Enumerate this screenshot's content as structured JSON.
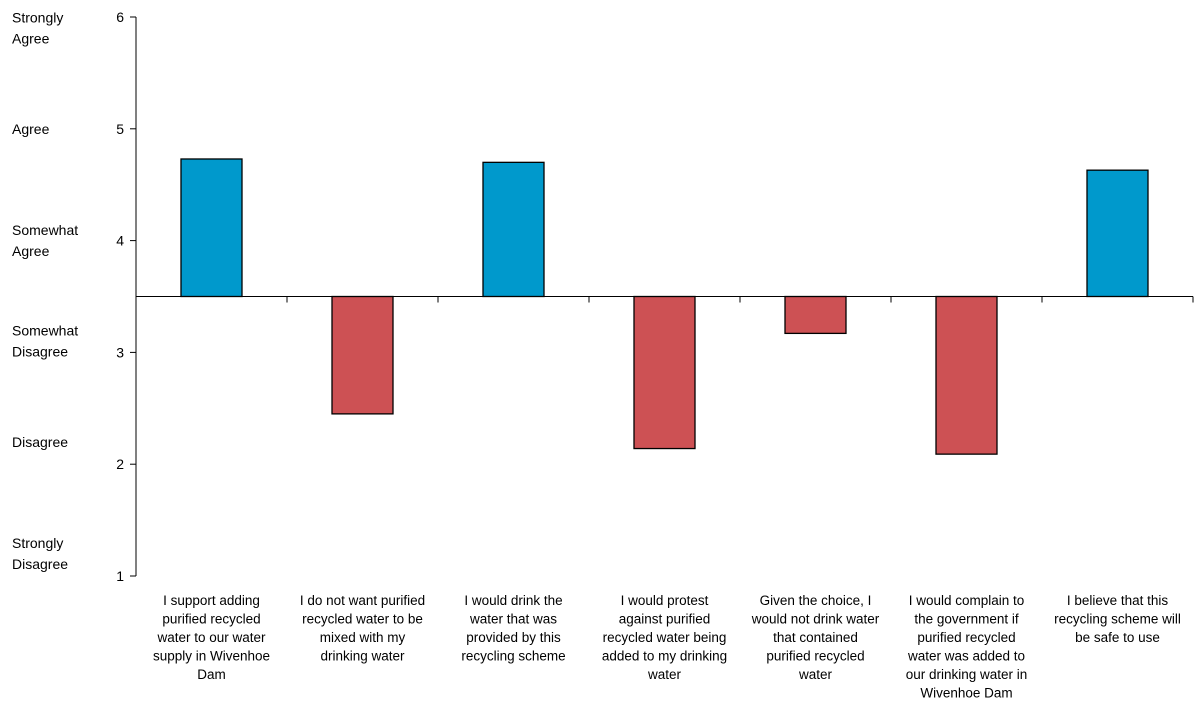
{
  "chart_data": {
    "type": "bar",
    "title": "",
    "xlabel": "",
    "ylabel": "",
    "ylim": [
      1,
      6
    ],
    "yticks": [
      1,
      2,
      3,
      4,
      5,
      6
    ],
    "baseline": 3.5,
    "grid": false,
    "legend": "none",
    "scale_labels": [
      {
        "text": "Strongly\nAgree",
        "value": 5.9
      },
      {
        "text": "Agree",
        "value": 5.0
      },
      {
        "text": "Somewhat\nAgree",
        "value": 4.0
      },
      {
        "text": "Somewhat\nDisagree",
        "value": 3.1
      },
      {
        "text": "Disagree",
        "value": 2.2
      },
      {
        "text": "Strongly\nDisagree",
        "value": 1.2
      }
    ],
    "categories": [
      "I support adding\npurified recycled\nwater to our water\nsupply in Wivenhoe\nDam",
      "I do not want purified\nrecycled water to be\nmixed with my\ndrinking water",
      "I would drink the\nwater that was\nprovided by this\nrecycling scheme",
      "I would protest\nagainst purified\nrecycled water being\nadded to my drinking\nwater",
      "Given the choice, I\nwould not drink water\nthat contained\npurified recycled\nwater",
      "I would complain to\nthe government if\npurified recycled\nwater was added to\nour drinking water in\nWivenhoe Dam",
      "I believe that this\nrecycling scheme will\nbe safe to use"
    ],
    "values": [
      4.73,
      2.45,
      4.7,
      2.14,
      3.17,
      2.09,
      4.63
    ],
    "colors": {
      "above": "#0099cc",
      "below": "#cd5154",
      "outline": "#000000",
      "axis": "#000000"
    }
  }
}
